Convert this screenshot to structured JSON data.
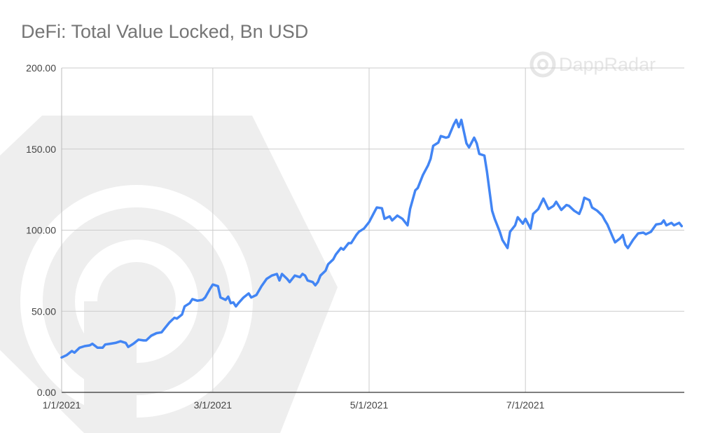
{
  "title": "DeFi: Total Value Locked, Bn USD",
  "watermark": "DappRadar",
  "colors": {
    "line": "#4285f4",
    "grid": "#cccccc",
    "axis": "#333333",
    "watermark": "#eeeeee"
  },
  "chart_data": {
    "type": "line",
    "title": "DeFi: Total Value Locked, Bn USD",
    "xlabel": "",
    "ylabel": "",
    "ylim": [
      0,
      200
    ],
    "xlim": [
      "2021-01-01",
      "2021-09-01"
    ],
    "grid": true,
    "y_ticks": [
      {
        "value": 0,
        "label": "0.00"
      },
      {
        "value": 50,
        "label": "50.00"
      },
      {
        "value": 100,
        "label": "100.00"
      },
      {
        "value": 150,
        "label": "150.00"
      },
      {
        "value": 200,
        "label": "200.00"
      }
    ],
    "x_ticks": [
      {
        "date": "2021-01-01",
        "label": "1/1/2021"
      },
      {
        "date": "2021-03-01",
        "label": "3/1/2021"
      },
      {
        "date": "2021-05-01",
        "label": "5/1/2021"
      },
      {
        "date": "2021-07-01",
        "label": "7/1/2021"
      }
    ],
    "series": [
      {
        "values": [
          [
            "2021-01-01",
            21.5
          ],
          [
            "2021-01-03",
            23
          ],
          [
            "2021-01-05",
            25.5
          ],
          [
            "2021-01-06",
            24.5
          ],
          [
            "2021-01-08",
            27.5
          ],
          [
            "2021-01-10",
            28.5
          ],
          [
            "2021-01-12",
            29
          ],
          [
            "2021-01-13",
            30
          ],
          [
            "2021-01-15",
            27.5
          ],
          [
            "2021-01-17",
            27.5
          ],
          [
            "2021-01-18",
            29.5
          ],
          [
            "2021-01-20",
            30
          ],
          [
            "2021-01-22",
            30.5
          ],
          [
            "2021-01-24",
            31.5
          ],
          [
            "2021-01-26",
            30.5
          ],
          [
            "2021-01-27",
            28
          ],
          [
            "2021-01-29",
            30
          ],
          [
            "2021-01-31",
            32.5
          ],
          [
            "2021-02-02",
            32
          ],
          [
            "2021-02-03",
            32
          ],
          [
            "2021-02-05",
            35
          ],
          [
            "2021-02-07",
            36.5
          ],
          [
            "2021-02-09",
            37
          ],
          [
            "2021-02-10",
            39
          ],
          [
            "2021-02-12",
            43
          ],
          [
            "2021-02-14",
            46
          ],
          [
            "2021-02-15",
            45.5
          ],
          [
            "2021-02-17",
            48
          ],
          [
            "2021-02-18",
            53
          ],
          [
            "2021-02-20",
            55
          ],
          [
            "2021-02-21",
            57.5
          ],
          [
            "2021-02-23",
            56.5
          ],
          [
            "2021-02-25",
            57
          ],
          [
            "2021-02-26",
            58.5
          ],
          [
            "2021-02-28",
            64
          ],
          [
            "2021-03-01",
            66.5
          ],
          [
            "2021-03-03",
            65.5
          ],
          [
            "2021-03-04",
            58.5
          ],
          [
            "2021-03-06",
            57
          ],
          [
            "2021-03-07",
            59
          ],
          [
            "2021-03-08",
            55
          ],
          [
            "2021-03-09",
            55.5
          ],
          [
            "2021-03-10",
            53
          ],
          [
            "2021-03-11",
            55
          ],
          [
            "2021-03-13",
            58.5
          ],
          [
            "2021-03-15",
            61
          ],
          [
            "2021-03-16",
            58.5
          ],
          [
            "2021-03-18",
            60
          ],
          [
            "2021-03-20",
            65.5
          ],
          [
            "2021-03-22",
            70
          ],
          [
            "2021-03-24",
            72
          ],
          [
            "2021-03-26",
            73
          ],
          [
            "2021-03-27",
            69
          ],
          [
            "2021-03-28",
            73
          ],
          [
            "2021-03-30",
            70
          ],
          [
            "2021-03-31",
            68
          ],
          [
            "2021-04-02",
            72
          ],
          [
            "2021-04-04",
            71
          ],
          [
            "2021-04-05",
            73
          ],
          [
            "2021-04-06",
            72
          ],
          [
            "2021-04-07",
            69
          ],
          [
            "2021-04-09",
            68
          ],
          [
            "2021-04-10",
            66
          ],
          [
            "2021-04-11",
            68
          ],
          [
            "2021-04-12",
            72
          ],
          [
            "2021-04-14",
            75
          ],
          [
            "2021-04-15",
            79
          ],
          [
            "2021-04-17",
            82
          ],
          [
            "2021-04-18",
            85
          ],
          [
            "2021-04-20",
            89
          ],
          [
            "2021-04-21",
            88
          ],
          [
            "2021-04-23",
            92
          ],
          [
            "2021-04-24",
            92
          ],
          [
            "2021-04-26",
            97
          ],
          [
            "2021-04-27",
            99
          ],
          [
            "2021-04-29",
            101
          ],
          [
            "2021-05-01",
            105
          ],
          [
            "2021-05-03",
            111
          ],
          [
            "2021-05-04",
            114
          ],
          [
            "2021-05-06",
            113.5
          ],
          [
            "2021-05-07",
            107
          ],
          [
            "2021-05-09",
            108.5
          ],
          [
            "2021-05-10",
            106
          ],
          [
            "2021-05-12",
            109
          ],
          [
            "2021-05-14",
            107
          ],
          [
            "2021-05-16",
            103
          ],
          [
            "2021-05-17",
            113
          ],
          [
            "2021-05-19",
            124.5
          ],
          [
            "2021-05-20",
            126
          ],
          [
            "2021-05-22",
            134
          ],
          [
            "2021-05-24",
            140
          ],
          [
            "2021-05-25",
            144
          ],
          [
            "2021-05-26",
            152
          ],
          [
            "2021-05-28",
            154
          ],
          [
            "2021-05-29",
            158
          ],
          [
            "2021-05-31",
            157
          ],
          [
            "2021-06-01",
            157.5
          ],
          [
            "2021-06-03",
            165
          ],
          [
            "2021-06-04",
            168
          ],
          [
            "2021-06-05",
            163.5
          ],
          [
            "2021-06-06",
            168
          ],
          [
            "2021-06-08",
            153.5
          ],
          [
            "2021-06-09",
            151
          ],
          [
            "2021-06-11",
            157
          ],
          [
            "2021-06-12",
            153.5
          ],
          [
            "2021-06-13",
            147
          ],
          [
            "2021-06-15",
            146
          ],
          [
            "2021-06-16",
            136
          ],
          [
            "2021-06-18",
            112
          ],
          [
            "2021-06-19",
            107
          ],
          [
            "2021-06-21",
            99
          ],
          [
            "2021-06-22",
            94
          ],
          [
            "2021-06-24",
            89
          ],
          [
            "2021-06-25",
            99
          ],
          [
            "2021-06-27",
            103
          ],
          [
            "2021-06-28",
            108
          ],
          [
            "2021-06-30",
            104
          ],
          [
            "2021-07-01",
            107
          ],
          [
            "2021-07-03",
            101
          ],
          [
            "2021-07-04",
            110
          ],
          [
            "2021-07-06",
            113
          ],
          [
            "2021-07-08",
            119.5
          ],
          [
            "2021-07-10",
            113
          ],
          [
            "2021-07-12",
            115
          ],
          [
            "2021-07-13",
            117.5
          ],
          [
            "2021-07-15",
            112.5
          ],
          [
            "2021-07-17",
            115.5
          ],
          [
            "2021-07-18",
            115
          ],
          [
            "2021-07-20",
            112
          ],
          [
            "2021-07-22",
            110
          ],
          [
            "2021-07-23",
            114
          ],
          [
            "2021-07-24",
            120
          ],
          [
            "2021-07-26",
            118.5
          ],
          [
            "2021-07-27",
            114
          ],
          [
            "2021-07-29",
            112
          ],
          [
            "2021-07-31",
            109
          ],
          [
            "2021-08-01",
            106
          ],
          [
            "2021-08-02",
            103.5
          ],
          [
            "2021-08-04",
            96
          ],
          [
            "2021-08-05",
            92.5
          ],
          [
            "2021-08-07",
            95
          ],
          [
            "2021-08-08",
            97
          ],
          [
            "2021-08-09",
            91
          ],
          [
            "2021-08-10",
            89
          ],
          [
            "2021-08-12",
            94
          ],
          [
            "2021-08-14",
            98
          ],
          [
            "2021-08-16",
            98.5
          ],
          [
            "2021-08-17",
            97.5
          ],
          [
            "2021-08-19",
            99
          ],
          [
            "2021-08-21",
            103.5
          ],
          [
            "2021-08-23",
            104
          ],
          [
            "2021-08-24",
            106
          ],
          [
            "2021-08-25",
            103
          ],
          [
            "2021-08-27",
            104.5
          ],
          [
            "2021-08-28",
            103
          ],
          [
            "2021-08-30",
            104.5
          ],
          [
            "2021-08-31",
            102.5
          ]
        ]
      }
    ]
  }
}
